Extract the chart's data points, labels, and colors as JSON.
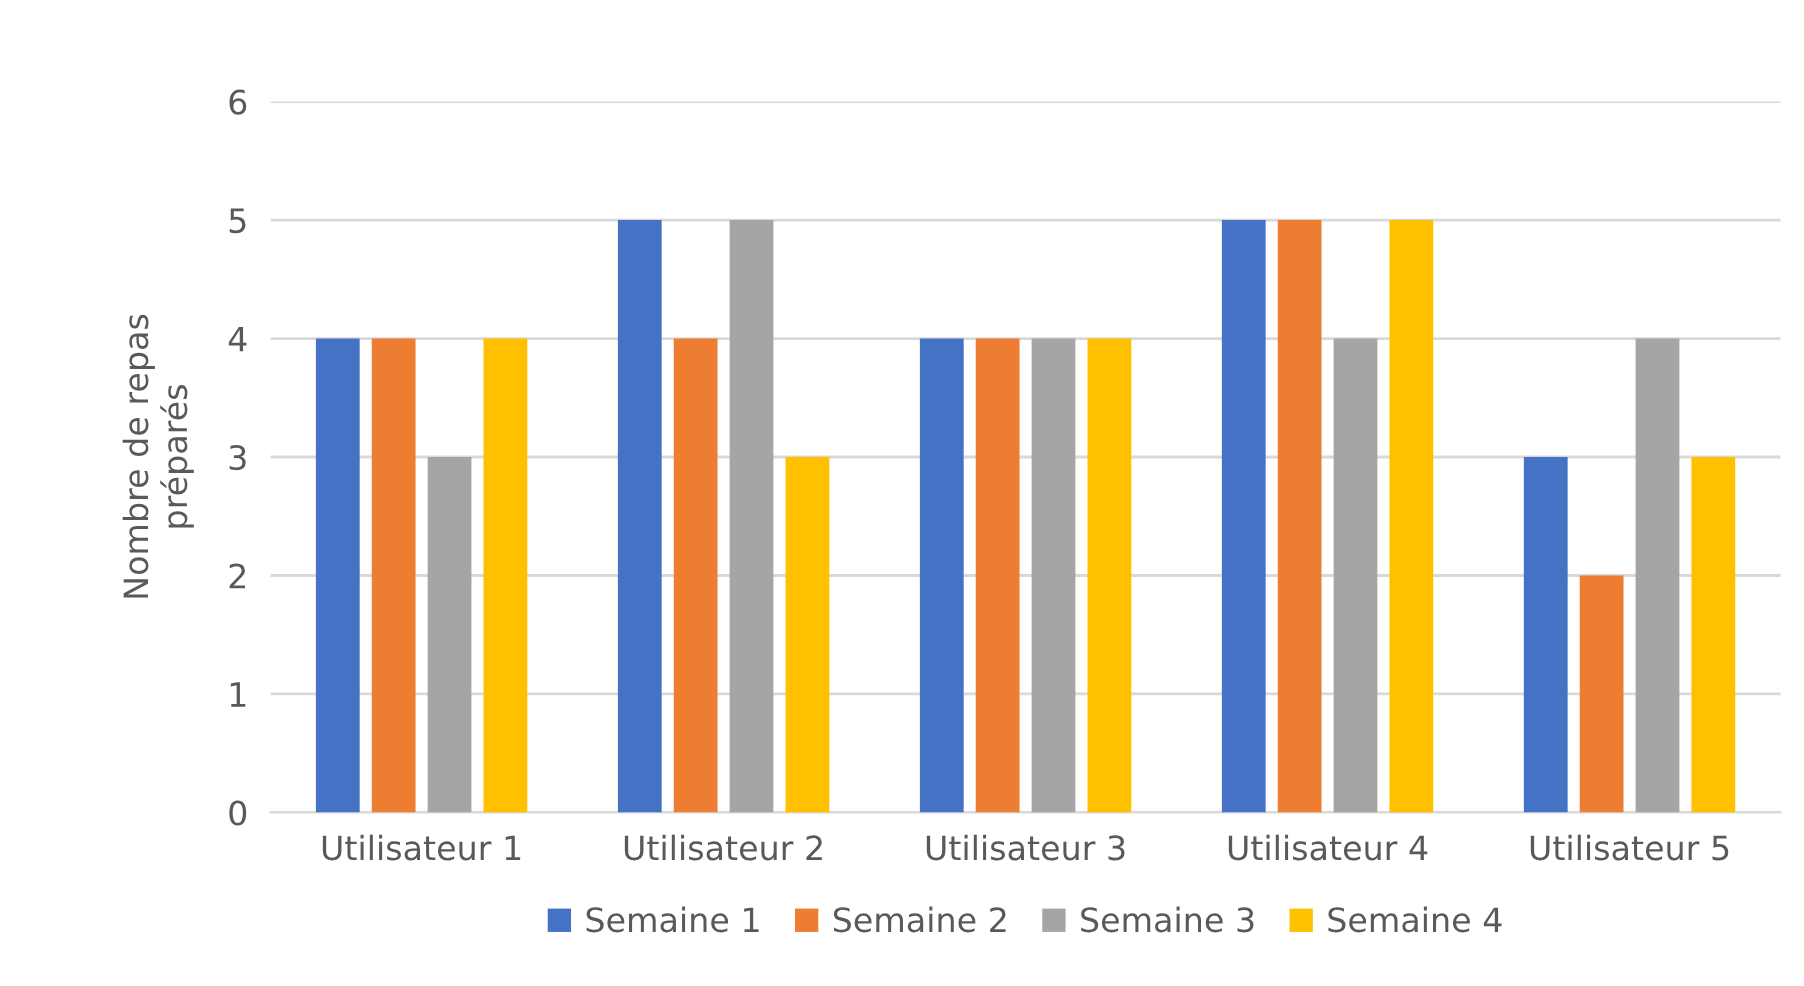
{
  "chart_data": {
    "type": "bar",
    "ylabel": "Nombre de repas préparés",
    "categories": [
      "Utilisateur 1",
      "Utilisateur 2",
      "Utilisateur 3",
      "Utilisateur 4",
      "Utilisateur 5"
    ],
    "series": [
      {
        "name": "Semaine 1",
        "color": "#4472c4",
        "values": [
          4,
          5,
          4,
          5,
          3
        ]
      },
      {
        "name": "Semaine 2",
        "color": "#ed7d31",
        "values": [
          4,
          4,
          4,
          5,
          2
        ]
      },
      {
        "name": "Semaine 3",
        "color": "#a5a5a5",
        "values": [
          3,
          5,
          4,
          4,
          4
        ]
      },
      {
        "name": "Semaine 4",
        "color": "#ffc000",
        "values": [
          4,
          3,
          4,
          5,
          3
        ]
      }
    ],
    "ylim": [
      0,
      6
    ],
    "yticks": [
      0,
      1,
      2,
      3,
      4,
      5,
      6
    ],
    "grid": "y",
    "legend": "bottom"
  }
}
